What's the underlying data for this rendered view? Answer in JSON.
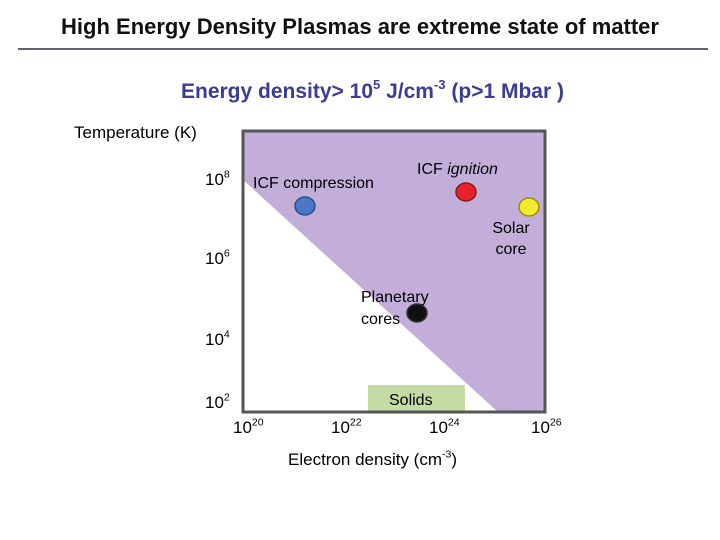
{
  "slide": {
    "title": "High Energy Density Plasmas are extreme state of matter",
    "subtitle": {
      "prefix": "Energy density> 10",
      "exp1": "5",
      "mid": " J/cm",
      "exp2": "-3",
      "suffix": " (p>1 Mbar )"
    }
  },
  "axes": {
    "y_label": "Temperature (K)",
    "y_ticks": [
      {
        "base": "10",
        "exp": "8"
      },
      {
        "base": "10",
        "exp": "6"
      },
      {
        "base": "10",
        "exp": "4"
      },
      {
        "base": "10",
        "exp": "2"
      }
    ],
    "x_ticks": [
      {
        "base": "10",
        "exp": "20"
      },
      {
        "base": "10",
        "exp": "22"
      },
      {
        "base": "10",
        "exp": "24"
      },
      {
        "base": "10",
        "exp": "26"
      }
    ],
    "x_label": {
      "prefix": "Electron density  (cm",
      "exp": "-3",
      "suffix": ")"
    }
  },
  "regions": {
    "hed_region_color": "#c3aed9",
    "solids": {
      "label": "Solids",
      "color": "#c4dca3"
    }
  },
  "points": [
    {
      "id": "icf-compression",
      "label": "ICF compression",
      "color": "#4a78c4"
    },
    {
      "id": "icf-ignition",
      "label_prefix": "ICF ",
      "label_italic": "ignition",
      "color": "#e8222a"
    },
    {
      "id": "solar-core",
      "label_line1": "Solar",
      "label_line2": "core",
      "color": "#f2ea2e"
    },
    {
      "id": "planetary-cores",
      "label_line1": "Planetary",
      "label_line2": "cores",
      "color": "#111111"
    }
  ]
}
